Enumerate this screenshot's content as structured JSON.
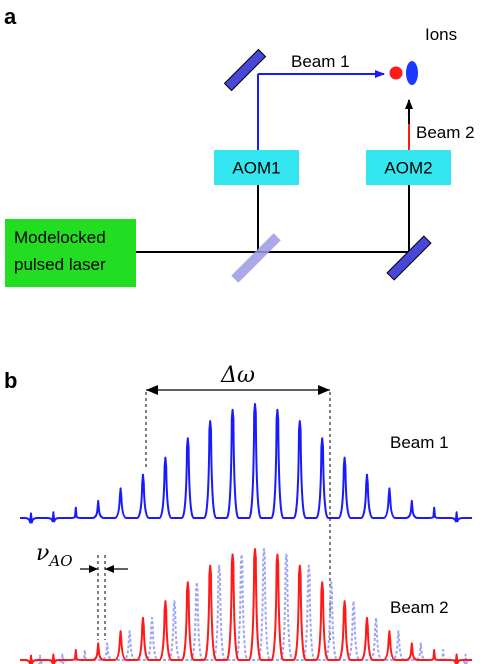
{
  "panel_a": {
    "label": "a",
    "ions_label": "Ions",
    "beam1_label": "Beam 1",
    "beam2_label": "Beam 2",
    "aom1_label": "AOM1",
    "aom2_label": "AOM2",
    "laser_line1": "Modelocked",
    "laser_line2": "pulsed laser"
  },
  "panel_b": {
    "label": "b",
    "delta_symbol": "Δω",
    "nu_symbol": "ν",
    "nu_sub": "AO",
    "beam1_label": "Beam 1",
    "beam2_label": "Beam 2"
  },
  "colors": {
    "beam1": "#1a1aff",
    "beam2": "#ff1a1a",
    "beam2_dashed": "#9fa6f0",
    "aom_box": "#33e6f0",
    "laser_box": "#22dd22",
    "mirror": "#4848d8",
    "splitter": "#9a9ae6",
    "ion_red": "#ff1a1a",
    "ion_blue": "#1a3aff"
  },
  "chart_data": {
    "type": "line",
    "series": [
      {
        "name": "Beam 1",
        "peak_heights": [
          0.04,
          0.05,
          0.09,
          0.15,
          0.26,
          0.38,
          0.53,
          0.7,
          0.85,
          0.95,
          1.0,
          0.95,
          0.85,
          0.7,
          0.53,
          0.38,
          0.26,
          0.15,
          0.09,
          0.05,
          0.04
        ]
      },
      {
        "name": "Beam 2",
        "peak_heights": [
          0.04,
          0.05,
          0.09,
          0.15,
          0.26,
          0.38,
          0.53,
          0.7,
          0.85,
          0.95,
          1.0,
          0.95,
          0.85,
          0.7,
          0.53,
          0.38,
          0.26,
          0.15,
          0.09,
          0.05,
          0.04
        ]
      }
    ],
    "grid": false
  }
}
